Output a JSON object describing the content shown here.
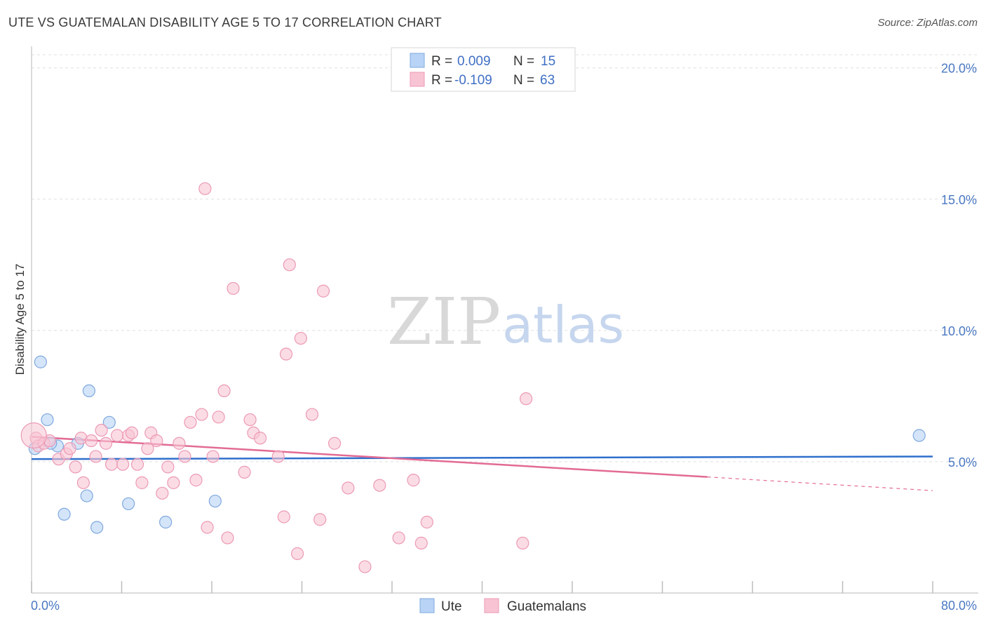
{
  "header": {
    "title": "UTE VS GUATEMALAN DISABILITY AGE 5 TO 17 CORRELATION CHART",
    "source": "Source: ZipAtlas.com"
  },
  "watermark": {
    "zip": "ZIP",
    "atlas": "atlas"
  },
  "colors": {
    "ute_fill": "#b8d3f5",
    "ute_stroke": "#7fa8de",
    "ute_line": "#2f6fcc",
    "guat_fill": "#f8c4d4",
    "guat_stroke": "#ec9ab4",
    "guat_line": "#e26b94",
    "grid": "#e0e0e0",
    "tick_text": "#4a78c2"
  },
  "legend": {
    "rows": [
      {
        "r_label": "R =",
        "r_value": "0.009",
        "n_label": "N =",
        "n_value": "15"
      },
      {
        "r_label": "R =",
        "r_value": "-0.109",
        "n_label": "N =",
        "n_value": "63"
      }
    ]
  },
  "chart_data": {
    "type": "scatter",
    "title": "UTE VS GUATEMALAN DISABILITY AGE 5 TO 17 CORRELATION CHART",
    "xlabel": "",
    "ylabel": "Disability Age 5 to 17",
    "xlim": [
      0,
      80
    ],
    "ylim": [
      0,
      20.5
    ],
    "x_tick_labels": [
      "0.0%",
      "80.0%"
    ],
    "y_ticks": [
      5,
      10,
      15,
      20
    ],
    "y_tick_labels": [
      "5.0%",
      "10.0%",
      "15.0%",
      "20.0%"
    ],
    "series": [
      {
        "name": "Ute",
        "r": 0.009,
        "n": 15,
        "trend": {
          "x0": 0,
          "y0": 5.1,
          "x1": 80,
          "y1": 5.2
        },
        "points": [
          [
            0.3,
            5.5
          ],
          [
            0.8,
            8.8
          ],
          [
            1.4,
            6.6
          ],
          [
            2.3,
            5.6
          ],
          [
            2.9,
            3.0
          ],
          [
            4.1,
            5.7
          ],
          [
            4.9,
            3.7
          ],
          [
            5.1,
            7.7
          ],
          [
            5.8,
            2.5
          ],
          [
            6.9,
            6.5
          ],
          [
            8.6,
            3.4
          ],
          [
            11.9,
            2.7
          ],
          [
            16.3,
            3.5
          ],
          [
            78.8,
            6.0
          ],
          [
            1.7,
            5.7
          ]
        ]
      },
      {
        "name": "Guatemalans",
        "r": -0.109,
        "n": 63,
        "trend": {
          "x0": 0,
          "y0": 5.95,
          "x1": 60,
          "y1": 4.42,
          "dash_x1": 80,
          "dash_y1": 3.9
        },
        "points": [
          [
            0.4,
            5.9
          ],
          [
            0.6,
            5.6
          ],
          [
            1.1,
            5.7
          ],
          [
            1.6,
            5.8
          ],
          [
            2.4,
            5.1
          ],
          [
            3.1,
            5.3
          ],
          [
            3.4,
            5.5
          ],
          [
            3.9,
            4.8
          ],
          [
            4.6,
            4.2
          ],
          [
            4.4,
            5.9
          ],
          [
            5.3,
            5.8
          ],
          [
            5.7,
            5.2
          ],
          [
            6.2,
            6.2
          ],
          [
            6.6,
            5.7
          ],
          [
            7.1,
            4.9
          ],
          [
            7.6,
            6.0
          ],
          [
            8.1,
            4.9
          ],
          [
            8.6,
            6.0
          ],
          [
            8.9,
            6.1
          ],
          [
            9.4,
            4.9
          ],
          [
            9.8,
            4.2
          ],
          [
            10.3,
            5.5
          ],
          [
            10.6,
            6.1
          ],
          [
            11.1,
            5.8
          ],
          [
            11.6,
            3.8
          ],
          [
            12.1,
            4.8
          ],
          [
            12.6,
            4.2
          ],
          [
            13.1,
            5.7
          ],
          [
            13.6,
            5.2
          ],
          [
            14.1,
            6.5
          ],
          [
            14.6,
            4.3
          ],
          [
            15.1,
            6.8
          ],
          [
            15.4,
            15.4
          ],
          [
            15.6,
            2.5
          ],
          [
            16.1,
            5.2
          ],
          [
            16.6,
            6.7
          ],
          [
            17.1,
            7.7
          ],
          [
            17.4,
            2.1
          ],
          [
            17.9,
            11.6
          ],
          [
            18.9,
            4.6
          ],
          [
            19.4,
            6.6
          ],
          [
            19.7,
            6.1
          ],
          [
            20.3,
            5.9
          ],
          [
            21.9,
            5.2
          ],
          [
            22.4,
            2.9
          ],
          [
            22.6,
            9.1
          ],
          [
            22.9,
            12.5
          ],
          [
            23.9,
            9.7
          ],
          [
            23.6,
            1.5
          ],
          [
            24.9,
            6.8
          ],
          [
            25.6,
            2.8
          ],
          [
            25.9,
            11.5
          ],
          [
            26.9,
            5.7
          ],
          [
            28.1,
            4.0
          ],
          [
            29.6,
            1.0
          ],
          [
            30.9,
            4.1
          ],
          [
            32.6,
            2.1
          ],
          [
            33.9,
            4.3
          ],
          [
            34.6,
            1.9
          ],
          [
            35.1,
            2.7
          ],
          [
            43.6,
            1.9
          ],
          [
            43.9,
            7.4
          ],
          [
            0.2,
            6.0
          ]
        ]
      }
    ]
  },
  "bottom_legend": {
    "items": [
      "Ute",
      "Guatemalans"
    ]
  }
}
